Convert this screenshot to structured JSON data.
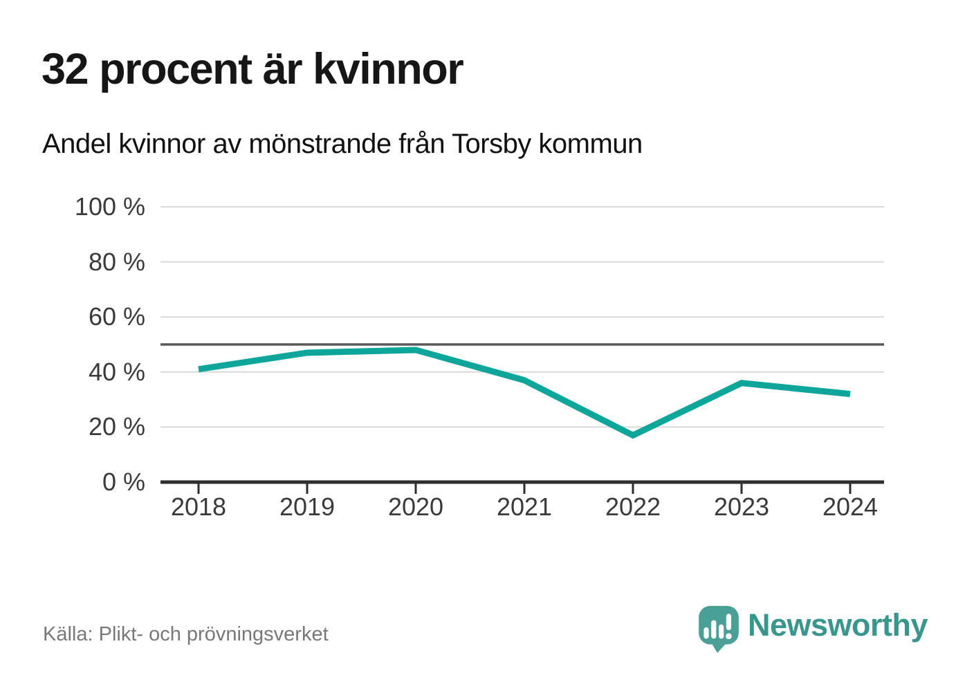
{
  "page": {
    "title": "32 procent är kvinnor",
    "subtitle": "Andel kvinnor av mönstrande från Torsby kommun",
    "source": "Källa: Plikt- och prövningsverket",
    "brand": {
      "name": "Newsworthy",
      "logo_icon": "speech-bubble-bar-chart-exclamation-icon",
      "logo_color": "#4aa096",
      "wordmark_color": "#39968c"
    }
  },
  "chart_data": {
    "type": "line",
    "title": "32 procent är kvinnor",
    "subtitle": "Andel kvinnor av mönstrande från Torsby kommun",
    "categories": [
      "2018",
      "2019",
      "2020",
      "2021",
      "2022",
      "2023",
      "2024"
    ],
    "series": [
      {
        "name": "Andel kvinnor av mönstrande",
        "values": [
          41,
          47,
          48,
          37,
          17,
          36,
          32
        ]
      }
    ],
    "unit": "%",
    "ylim": [
      0,
      100
    ],
    "y_ticks": [
      {
        "value": 100,
        "label": "100 %"
      },
      {
        "value": 80,
        "label": "80 %"
      },
      {
        "value": 60,
        "label": "60 %"
      },
      {
        "value": 40,
        "label": "40 %"
      },
      {
        "value": 20,
        "label": "20 %"
      },
      {
        "value": 0,
        "label": "0 %"
      }
    ],
    "reference_line": {
      "value": 50
    },
    "grid": "horizontal",
    "legend": "none",
    "line_color": "#0ea59a",
    "gridline_color": "#d9d9d9",
    "reference_line_color": "#59595b",
    "axis_color": "#2e2e2e"
  }
}
